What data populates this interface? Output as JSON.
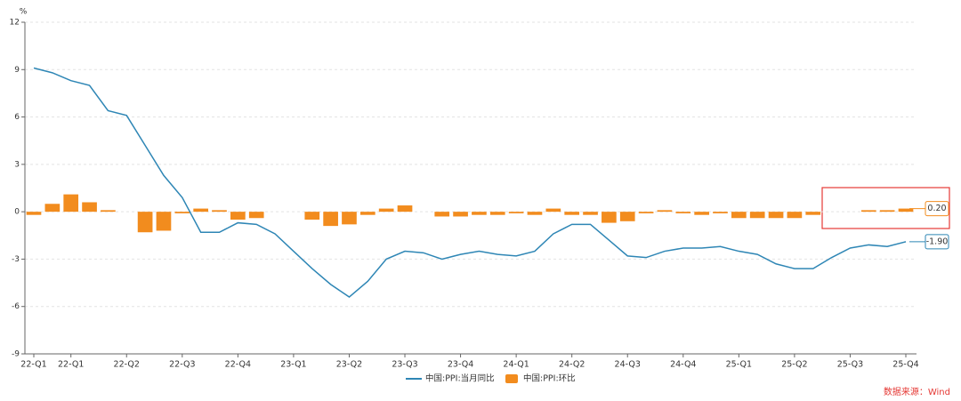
{
  "chart_data": {
    "type": "line-bar",
    "y_unit": "%",
    "source": "数据来源：Wind",
    "categories": [
      "22-Q1",
      null,
      "22-Q1",
      null,
      null,
      "22-Q2",
      null,
      null,
      "22-Q3",
      null,
      null,
      "22-Q4",
      null,
      null,
      "23-Q1",
      null,
      null,
      "23-Q2",
      null,
      null,
      "23-Q3",
      null,
      null,
      "23-Q4",
      null,
      null,
      "24-Q1",
      null,
      null,
      "24-Q2",
      null,
      null,
      "24-Q3",
      null,
      null,
      "24-Q4",
      null,
      null,
      "25-Q1",
      null,
      null,
      "25-Q2",
      null,
      null,
      "25-Q3",
      null,
      null,
      "25-Q4"
    ],
    "ylim": [
      -9,
      12
    ],
    "yticks": [
      -9,
      -6,
      -3,
      0,
      3,
      6,
      9,
      12
    ],
    "grid": true,
    "series": [
      {
        "name": "中国:PPI:当月同比",
        "type": "line",
        "color": "#2e86b5",
        "values": [
          9.1,
          8.8,
          8.3,
          8.0,
          6.4,
          6.1,
          4.2,
          2.3,
          0.9,
          -1.3,
          -1.3,
          -0.7,
          -0.8,
          -1.4,
          -2.5,
          -3.6,
          -4.6,
          -5.4,
          -4.4,
          -3.0,
          -2.5,
          -2.6,
          -3.0,
          -2.7,
          -2.5,
          -2.7,
          -2.8,
          -2.5,
          -1.4,
          -0.8,
          -0.8,
          -1.8,
          -2.8,
          -2.9,
          -2.5,
          -2.3,
          -2.3,
          -2.2,
          -2.5,
          -2.7,
          -3.3,
          -3.6,
          -3.6,
          -2.9,
          -2.3,
          -2.1,
          -2.2,
          -1.9
        ],
        "value_labels": [
          null,
          null,
          null,
          null,
          null,
          null,
          null,
          null,
          null,
          null,
          null,
          null,
          null,
          null,
          null,
          null,
          null,
          null,
          null,
          null,
          null,
          null,
          null,
          null,
          null,
          null,
          null,
          null,
          null,
          null,
          null,
          null,
          null,
          null,
          null,
          null,
          null,
          null,
          null,
          null,
          null,
          null,
          null,
          null,
          null,
          null,
          null,
          "-1.90"
        ]
      },
      {
        "name": "中国:PPI:环比",
        "type": "bar",
        "color": "#f28c1e",
        "values": [
          -0.2,
          0.5,
          1.1,
          0.6,
          0.1,
          0.0,
          -1.3,
          -1.2,
          -0.1,
          0.2,
          0.1,
          -0.5,
          -0.4,
          0.0,
          0.0,
          -0.5,
          -0.9,
          -0.8,
          -0.2,
          0.2,
          0.4,
          0.0,
          -0.3,
          -0.3,
          -0.2,
          -0.2,
          -0.1,
          -0.2,
          0.2,
          -0.2,
          -0.2,
          -0.7,
          -0.6,
          -0.1,
          0.1,
          -0.1,
          -0.2,
          -0.1,
          -0.4,
          -0.4,
          -0.4,
          -0.4,
          -0.2,
          0.0,
          0.0,
          0.1,
          0.1,
          0.2
        ],
        "value_labels": [
          null,
          null,
          null,
          null,
          null,
          null,
          null,
          null,
          null,
          null,
          null,
          null,
          null,
          null,
          null,
          null,
          null,
          null,
          null,
          null,
          null,
          null,
          null,
          null,
          null,
          null,
          null,
          null,
          null,
          null,
          null,
          null,
          null,
          null,
          null,
          null,
          null,
          null,
          null,
          null,
          null,
          null,
          null,
          null,
          null,
          null,
          null,
          "0.20"
        ]
      }
    ]
  }
}
